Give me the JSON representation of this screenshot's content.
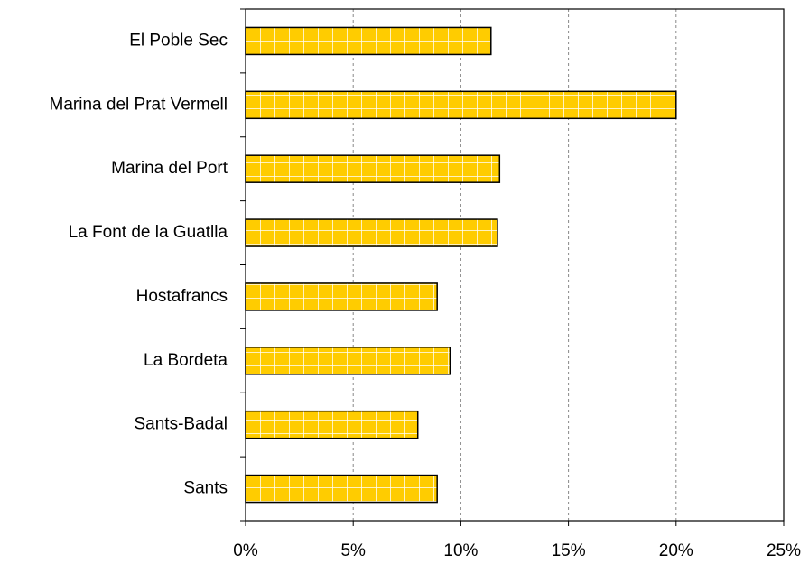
{
  "chart_data": {
    "type": "bar",
    "orientation": "horizontal",
    "categories": [
      "El Poble Sec",
      "Marina del Prat Vermell",
      "Marina del Port",
      "La Font de la Guatlla",
      "Hostafrancs",
      "La Bordeta",
      "Sants-Badal",
      "Sants"
    ],
    "values": [
      11.4,
      20,
      11.8,
      11.7,
      8.9,
      9.5,
      8,
      8.9
    ],
    "color": "#ffcc00",
    "xlim": [
      0,
      25
    ],
    "xticks": [
      {
        "value": 0,
        "label": "0%"
      },
      {
        "value": 5,
        "label": "5%"
      },
      {
        "value": 10,
        "label": "10%"
      },
      {
        "value": 15,
        "label": "15%"
      },
      {
        "value": 20,
        "label": "20%"
      },
      {
        "value": 25,
        "label": "25%"
      }
    ],
    "grid": true
  }
}
